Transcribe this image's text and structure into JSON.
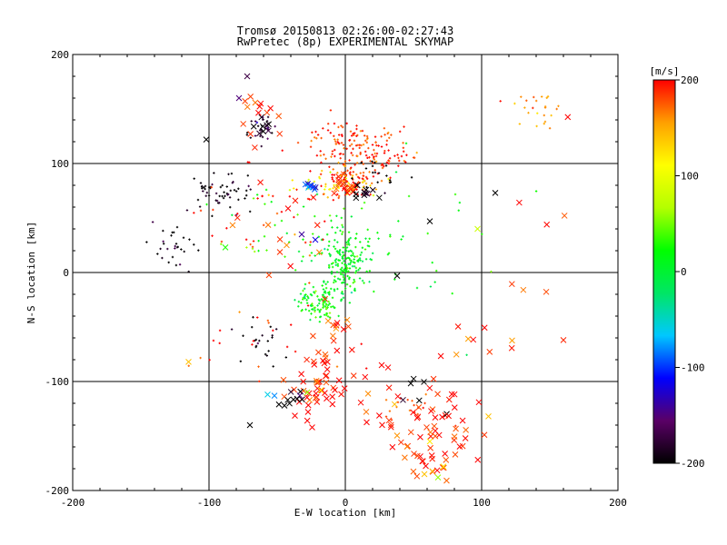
{
  "chart_data": {
    "type": "scatter",
    "title": "Tromsø 20150813 02:26:00-02:27:43",
    "subtitle": "RwPretec (8p) EXPERIMENTAL SKYMAP",
    "xlabel": "E-W location [km]",
    "ylabel": "N-S location [km]",
    "xlim": [
      -200,
      200
    ],
    "ylim": [
      -200,
      200
    ],
    "x_ticks": [
      -200,
      -100,
      0,
      100,
      200
    ],
    "y_ticks": [
      -200,
      -100,
      0,
      100,
      200
    ],
    "grid": true,
    "grid_lines_x": [
      -100,
      0,
      100
    ],
    "grid_lines_y": [
      -100,
      0,
      100
    ],
    "colorbar": {
      "label": "[m/s]",
      "range": [
        -200,
        200
      ],
      "ticks": [
        200,
        100,
        0,
        -100,
        -200
      ],
      "colors": [
        "#000000",
        "#5a0066",
        "#0000ff",
        "#00c8ff",
        "#00e664",
        "#00ff00",
        "#b4ff00",
        "#ffff00",
        "#ffa000",
        "#ff0000"
      ]
    },
    "markers": {
      "dot": "+",
      "cross": "x"
    },
    "clusters": [
      {
        "cx": 0,
        "cy": 10,
        "sx": 8,
        "sy": 15,
        "n": 160,
        "v": 10,
        "sym": "dot"
      },
      {
        "cx": -20,
        "cy": -28,
        "sx": 8,
        "sy": 8,
        "n": 110,
        "v": 15,
        "sym": "dot"
      },
      {
        "cx": 2,
        "cy": 32,
        "sx": 14,
        "sy": 22,
        "n": 45,
        "v": 20,
        "sym": "dot"
      },
      {
        "cx": 5,
        "cy": 120,
        "sx": 18,
        "sy": 9,
        "n": 110,
        "v": 190,
        "sym": "dot"
      },
      {
        "cx": 5,
        "cy": 87,
        "sx": 12,
        "sy": 9,
        "n": 90,
        "v": 180,
        "sym": "dot"
      },
      {
        "cx": -8,
        "cy": 80,
        "sx": 18,
        "sy": 8,
        "n": 50,
        "v": 110,
        "sym": "dot"
      },
      {
        "cx": 30,
        "cy": 105,
        "sx": 15,
        "sy": 5,
        "n": 35,
        "v": 190,
        "sym": "dot"
      },
      {
        "cx": -90,
        "cy": 75,
        "sx": 12,
        "sy": 8,
        "n": 55,
        "v": -200,
        "sym": "dot"
      },
      {
        "cx": -128,
        "cy": 30,
        "sx": 10,
        "sy": 14,
        "n": 30,
        "v": -200,
        "sym": "dot"
      },
      {
        "cx": -62,
        "cy": 132,
        "sx": 6,
        "sy": 6,
        "n": 28,
        "v": -180,
        "sym": "dot"
      },
      {
        "cx": 140,
        "cy": 150,
        "sx": 12,
        "sy": 8,
        "n": 24,
        "v": 160,
        "sym": "dot"
      },
      {
        "cx": -60,
        "cy": -65,
        "sx": 8,
        "sy": 10,
        "n": 22,
        "v": -200,
        "sym": "dot"
      },
      {
        "cx": -50,
        "cy": 60,
        "sx": 25,
        "sy": 30,
        "n": 40,
        "v": 190,
        "sym": "dot"
      },
      {
        "cx": -40,
        "cy": 30,
        "sx": 25,
        "sy": 25,
        "n": 30,
        "v": 30,
        "sym": "dot"
      },
      {
        "cx": -60,
        "cy": -60,
        "sx": 35,
        "sy": 20,
        "n": 22,
        "v": 190,
        "sym": "dot"
      },
      {
        "cx": 60,
        "cy": 30,
        "sx": 30,
        "sy": 40,
        "n": 25,
        "v": 20,
        "sym": "dot"
      },
      {
        "cx": 50,
        "cy": -120,
        "sx": 12,
        "sy": 10,
        "n": 18,
        "v": 185,
        "sym": "dot"
      },
      {
        "cx": 20,
        "cy": 90,
        "sx": 10,
        "sy": 8,
        "n": 20,
        "v": -200,
        "sym": "dot"
      },
      {
        "cx": -22,
        "cy": -105,
        "sx": 10,
        "sy": 14,
        "n": 45,
        "v": 195,
        "sym": "cross"
      },
      {
        "cx": 60,
        "cy": -165,
        "sx": 14,
        "sy": 18,
        "n": 40,
        "v": 190,
        "sym": "cross"
      },
      {
        "cx": 35,
        "cy": -118,
        "sx": 20,
        "sy": 18,
        "n": 30,
        "v": 195,
        "sym": "cross"
      },
      {
        "cx": -5,
        "cy": -60,
        "sx": 8,
        "sy": 15,
        "n": 14,
        "v": 195,
        "sym": "cross"
      },
      {
        "cx": 0,
        "cy": 78,
        "sx": 6,
        "sy": 5,
        "n": 18,
        "v": 180,
        "sym": "cross"
      },
      {
        "cx": -62,
        "cy": 148,
        "sx": 8,
        "sy": 12,
        "n": 14,
        "v": 185,
        "sym": "cross"
      },
      {
        "cx": -50,
        "cy": 50,
        "sx": 20,
        "sy": 25,
        "n": 14,
        "v": 190,
        "sym": "cross"
      },
      {
        "cx": 90,
        "cy": -50,
        "sx": 15,
        "sy": 20,
        "n": 8,
        "v": 190,
        "sym": "cross"
      },
      {
        "cx": -62,
        "cy": 133,
        "sx": 4,
        "sy": 4,
        "n": 8,
        "v": -200,
        "sym": "cross"
      },
      {
        "cx": -25,
        "cy": 78,
        "sx": 3,
        "sy": 3,
        "n": 8,
        "v": -110,
        "sym": "cross"
      },
      {
        "cx": 15,
        "cy": 72,
        "sx": 5,
        "sy": 3,
        "n": 10,
        "v": -200,
        "sym": "cross"
      },
      {
        "cx": -35,
        "cy": -115,
        "sx": 6,
        "sy": 4,
        "n": 10,
        "v": -200,
        "sym": "cross"
      },
      {
        "cx": 50,
        "cy": -115,
        "sx": 10,
        "sy": 8,
        "n": 6,
        "v": -200,
        "sym": "cross"
      },
      {
        "cx": 80,
        "cy": -140,
        "sx": 15,
        "sy": 12,
        "n": 12,
        "v": 185,
        "sym": "cross"
      },
      {
        "cx": 125,
        "cy": 10,
        "sx": 30,
        "sy": 40,
        "n": 8,
        "v": 190,
        "sym": "cross"
      }
    ],
    "points": [
      {
        "x": -72,
        "y": 180,
        "v": -170,
        "sym": "cross"
      },
      {
        "x": -102,
        "y": 122,
        "v": -200,
        "sym": "cross"
      },
      {
        "x": -115,
        "y": -82,
        "v": 140,
        "sym": "cross"
      },
      {
        "x": -88,
        "y": 23,
        "v": 30,
        "sym": "cross"
      },
      {
        "x": 110,
        "y": 73,
        "v": -200,
        "sym": "cross"
      },
      {
        "x": 97,
        "y": 40,
        "v": 80,
        "sym": "cross"
      },
      {
        "x": 62,
        "y": 47,
        "v": -200,
        "sym": "cross"
      },
      {
        "x": 38,
        "y": -3,
        "v": -200,
        "sym": "cross"
      },
      {
        "x": -70,
        "y": -140,
        "v": -200,
        "sym": "cross"
      },
      {
        "x": 105,
        "y": -132,
        "v": 140,
        "sym": "cross"
      },
      {
        "x": 160,
        "y": -62,
        "v": 190,
        "sym": "cross"
      },
      {
        "x": -25,
        "y": 80,
        "v": -100,
        "sym": "cross"
      },
      {
        "x": -22,
        "y": 30,
        "v": -120,
        "sym": "cross"
      },
      {
        "x": -32,
        "y": 35,
        "v": -140,
        "sym": "cross"
      },
      {
        "x": -52,
        "y": -113,
        "v": -80,
        "sym": "cross"
      },
      {
        "x": -57,
        "y": -112,
        "v": -60,
        "sym": "cross"
      },
      {
        "x": -28,
        "y": -110,
        "v": 60,
        "sym": "cross"
      },
      {
        "x": -18,
        "y": -108,
        "v": 120,
        "sym": "cross"
      },
      {
        "x": 68,
        "y": -188,
        "v": 60,
        "sym": "cross"
      },
      {
        "x": 72,
        "y": -178,
        "v": 120,
        "sym": "cross"
      },
      {
        "x": 58,
        "y": -185,
        "v": 140,
        "sym": "cross"
      },
      {
        "x": -78,
        "y": 160,
        "v": -150,
        "sym": "cross"
      },
      {
        "x": 62,
        "y": -155,
        "v": 120,
        "sym": "cross"
      }
    ]
  }
}
